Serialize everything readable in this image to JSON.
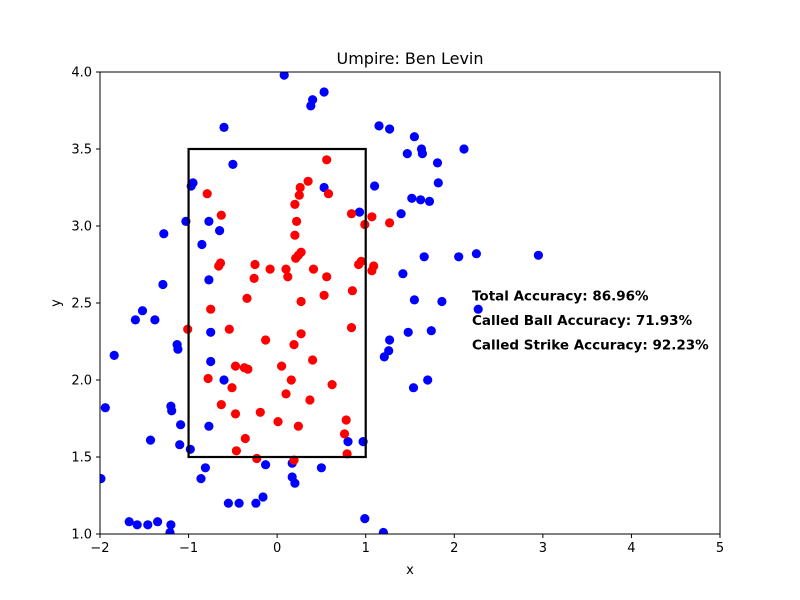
{
  "chart_data": {
    "type": "scatter",
    "title": "Umpire: Ben Levin",
    "xlabel": "x",
    "ylabel": "y",
    "xlim": [
      -2,
      5
    ],
    "ylim": [
      1.0,
      4.0
    ],
    "xticks": [
      "−2",
      "−1",
      "0",
      "1",
      "2",
      "3",
      "4",
      "5"
    ],
    "xtick_values": [
      -2,
      -1,
      0,
      1,
      2,
      3,
      4,
      5
    ],
    "yticks": [
      "1.0",
      "1.5",
      "2.0",
      "2.5",
      "3.0",
      "3.5",
      "4.0"
    ],
    "ytick_values": [
      1.0,
      1.5,
      2.0,
      2.5,
      3.0,
      3.5,
      4.0
    ],
    "grid": false,
    "strike_zone": {
      "x": [
        -1,
        1
      ],
      "y": [
        1.5,
        3.5
      ],
      "color": "#000000"
    },
    "annotations": [
      "Total Accuracy: 86.96%",
      "Called Ball Accuracy: 71.93%",
      "Called Strike Accuracy: 92.23%"
    ],
    "series": [
      {
        "color": "#0000ff",
        "points": [
          [
            0.08,
            3.98
          ],
          [
            0.4,
            3.82
          ],
          [
            0.38,
            3.78
          ],
          [
            0.53,
            3.87
          ],
          [
            -0.6,
            3.64
          ],
          [
            1.15,
            3.65
          ],
          [
            1.27,
            3.63
          ],
          [
            1.55,
            3.58
          ],
          [
            1.47,
            3.47
          ],
          [
            1.63,
            3.5
          ],
          [
            1.64,
            3.47
          ],
          [
            2.11,
            3.5
          ],
          [
            1.81,
            3.41
          ],
          [
            -0.5,
            3.4
          ],
          [
            -0.95,
            3.28
          ],
          [
            -0.97,
            3.26
          ],
          [
            0.53,
            3.25
          ],
          [
            1.1,
            3.26
          ],
          [
            1.82,
            3.28
          ],
          [
            1.52,
            3.18
          ],
          [
            1.62,
            3.17
          ],
          [
            1.72,
            3.16
          ],
          [
            0.93,
            3.09
          ],
          [
            1.4,
            3.08
          ],
          [
            -1.03,
            3.03
          ],
          [
            -0.77,
            3.03
          ],
          [
            -0.65,
            2.97
          ],
          [
            -1.28,
            2.95
          ],
          [
            -0.85,
            2.88
          ],
          [
            1.66,
            2.8
          ],
          [
            2.05,
            2.8
          ],
          [
            2.25,
            2.82
          ],
          [
            2.95,
            2.81
          ],
          [
            1.42,
            2.69
          ],
          [
            -0.77,
            2.65
          ],
          [
            -1.29,
            2.62
          ],
          [
            1.86,
            2.51
          ],
          [
            1.55,
            2.52
          ],
          [
            2.27,
            2.46
          ],
          [
            -1.52,
            2.45
          ],
          [
            -1.6,
            2.39
          ],
          [
            -1.38,
            2.39
          ],
          [
            -0.75,
            2.31
          ],
          [
            1.48,
            2.31
          ],
          [
            1.74,
            2.32
          ],
          [
            1.27,
            2.26
          ],
          [
            -1.13,
            2.23
          ],
          [
            -1.12,
            2.2
          ],
          [
            1.26,
            2.19
          ],
          [
            1.21,
            2.15
          ],
          [
            -1.84,
            2.16
          ],
          [
            -0.75,
            2.12
          ],
          [
            -0.6,
            2.0
          ],
          [
            1.7,
            2.0
          ],
          [
            1.54,
            1.95
          ],
          [
            -1.94,
            1.82
          ],
          [
            -1.2,
            1.83
          ],
          [
            -1.19,
            1.8
          ],
          [
            -1.09,
            1.71
          ],
          [
            -0.77,
            1.7
          ],
          [
            -1.43,
            1.61
          ],
          [
            0.8,
            1.6
          ],
          [
            0.97,
            1.6
          ],
          [
            -1.1,
            1.58
          ],
          [
            -0.98,
            1.55
          ],
          [
            0.17,
            1.46
          ],
          [
            -0.13,
            1.45
          ],
          [
            0.5,
            1.43
          ],
          [
            -0.81,
            1.43
          ],
          [
            0.17,
            1.37
          ],
          [
            -0.86,
            1.36
          ],
          [
            0.2,
            1.33
          ],
          [
            -0.16,
            1.24
          ],
          [
            -0.55,
            1.2
          ],
          [
            -0.43,
            1.2
          ],
          [
            -0.24,
            1.2
          ],
          [
            -1.99,
            1.36
          ],
          [
            -1.67,
            1.08
          ],
          [
            -1.58,
            1.06
          ],
          [
            -1.46,
            1.06
          ],
          [
            -1.35,
            1.08
          ],
          [
            -1.2,
            1.06
          ],
          [
            -1.21,
            1.01
          ],
          [
            0.99,
            1.1
          ],
          [
            1.2,
            1.01
          ]
        ]
      },
      {
        "color": "#ff0000",
        "points": [
          [
            0.56,
            3.43
          ],
          [
            0.35,
            3.29
          ],
          [
            0.26,
            3.25
          ],
          [
            -0.79,
            3.21
          ],
          [
            0.25,
            3.2
          ],
          [
            0.58,
            3.21
          ],
          [
            0.2,
            3.14
          ],
          [
            -0.63,
            3.07
          ],
          [
            0.84,
            3.08
          ],
          [
            1.07,
            3.06
          ],
          [
            0.22,
            3.03
          ],
          [
            0.99,
            3.01
          ],
          [
            1.27,
            3.02
          ],
          [
            0.2,
            2.94
          ],
          [
            0.27,
            2.83
          ],
          [
            0.24,
            2.81
          ],
          [
            0.21,
            2.79
          ],
          [
            -0.64,
            2.76
          ],
          [
            -0.25,
            2.75
          ],
          [
            -0.66,
            2.74
          ],
          [
            0.95,
            2.77
          ],
          [
            0.92,
            2.75
          ],
          [
            1.09,
            2.74
          ],
          [
            1.07,
            2.71
          ],
          [
            -0.08,
            2.72
          ],
          [
            0.1,
            2.72
          ],
          [
            0.41,
            2.72
          ],
          [
            0.12,
            2.67
          ],
          [
            0.56,
            2.67
          ],
          [
            -0.26,
            2.66
          ],
          [
            0.85,
            2.58
          ],
          [
            0.53,
            2.55
          ],
          [
            -0.34,
            2.53
          ],
          [
            0.27,
            2.51
          ],
          [
            -0.75,
            2.46
          ],
          [
            -1.01,
            2.33
          ],
          [
            -0.54,
            2.33
          ],
          [
            0.84,
            2.34
          ],
          [
            0.27,
            2.3
          ],
          [
            -0.13,
            2.26
          ],
          [
            0.19,
            2.23
          ],
          [
            0.4,
            2.13
          ],
          [
            -0.47,
            2.09
          ],
          [
            0.05,
            2.09
          ],
          [
            -0.37,
            2.08
          ],
          [
            -0.33,
            2.07
          ],
          [
            -0.78,
            2.01
          ],
          [
            0.16,
            2.0
          ],
          [
            0.62,
            1.97
          ],
          [
            -0.51,
            1.95
          ],
          [
            0.1,
            1.91
          ],
          [
            0.37,
            1.87
          ],
          [
            -0.63,
            1.84
          ],
          [
            -0.47,
            1.78
          ],
          [
            -0.19,
            1.79
          ],
          [
            0.78,
            1.74
          ],
          [
            0.01,
            1.73
          ],
          [
            0.24,
            1.7
          ],
          [
            0.76,
            1.65
          ],
          [
            -0.36,
            1.62
          ],
          [
            -0.46,
            1.54
          ],
          [
            0.79,
            1.52
          ],
          [
            -0.23,
            1.49
          ],
          [
            0.19,
            1.48
          ]
        ]
      }
    ]
  }
}
